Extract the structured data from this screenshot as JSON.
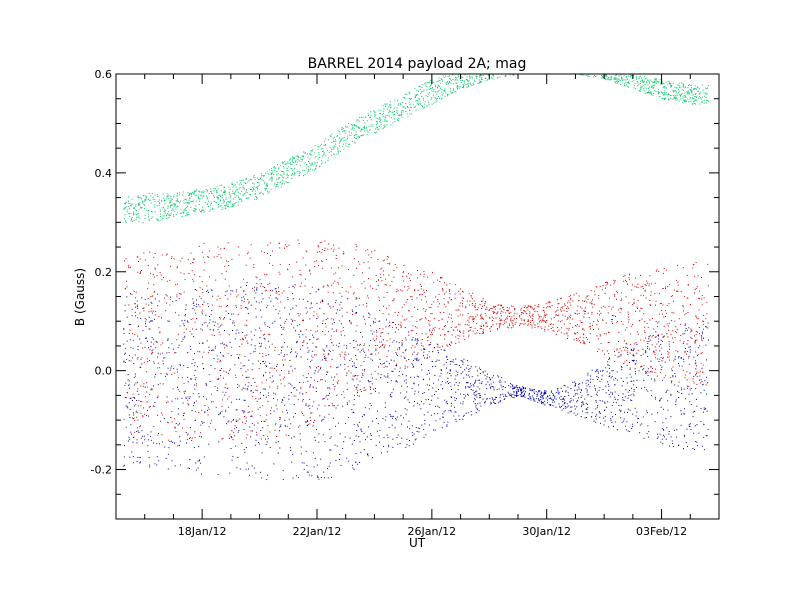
{
  "chart_data": {
    "type": "scatter",
    "title": "BARREL 2014 payload 2A; mag",
    "xlabel": "UT",
    "ylabel": "B (Gauss)",
    "xlim": [
      "2012-01-15T00:00",
      "2012-02-05T00:00"
    ],
    "ylim": [
      -0.3,
      0.6
    ],
    "x_ticks": [
      "18Jan/12",
      "22Jan/12",
      "26Jan/12",
      "30Jan/12",
      "03Feb/12"
    ],
    "x_tick_dates": [
      "2012-01-18",
      "2012-01-22",
      "2012-01-26",
      "2012-01-30",
      "2012-02-03"
    ],
    "y_ticks": [
      "-0.2",
      "0.0",
      "0.2",
      "0.4",
      "0.6"
    ],
    "y_tick_values": [
      -0.2,
      0.0,
      0.2,
      0.4,
      0.6
    ],
    "grid": false,
    "series": [
      {
        "color": "#00cc66",
        "x": [
          "2012-01-15",
          "2012-01-16",
          "2012-01-17",
          "2012-01-18",
          "2012-01-19",
          "2012-01-20",
          "2012-01-21",
          "2012-01-22",
          "2012-01-23",
          "2012-01-24",
          "2012-01-25",
          "2012-01-26",
          "2012-01-27",
          "2012-01-28",
          "2012-01-29",
          "2012-01-30",
          "2012-01-31",
          "2012-02-01",
          "2012-02-02",
          "2012-02-03",
          "2012-02-04"
        ],
        "upper": [
          0.36,
          0.36,
          0.36,
          0.37,
          0.38,
          0.4,
          0.43,
          0.46,
          0.5,
          0.53,
          0.56,
          0.59,
          0.61,
          0.62,
          0.63,
          0.64,
          0.63,
          0.61,
          0.6,
          0.59,
          0.58
        ],
        "lower": [
          0.3,
          0.3,
          0.31,
          0.32,
          0.33,
          0.35,
          0.38,
          0.41,
          0.45,
          0.48,
          0.51,
          0.54,
          0.57,
          0.59,
          0.6,
          0.6,
          0.6,
          0.59,
          0.57,
          0.55,
          0.54
        ]
      },
      {
        "color": "#cc0000",
        "x": [
          "2012-01-15",
          "2012-01-16",
          "2012-01-17",
          "2012-01-18",
          "2012-01-19",
          "2012-01-20",
          "2012-01-21",
          "2012-01-22",
          "2012-01-23",
          "2012-01-24",
          "2012-01-25",
          "2012-01-26",
          "2012-01-27",
          "2012-01-28",
          "2012-01-29",
          "2012-01-30",
          "2012-01-31",
          "2012-02-01",
          "2012-02-02",
          "2012-02-03",
          "2012-02-04"
        ],
        "upper": [
          0.23,
          0.24,
          0.25,
          0.26,
          0.26,
          0.26,
          0.265,
          0.265,
          0.26,
          0.25,
          0.22,
          0.2,
          0.17,
          0.14,
          0.13,
          0.14,
          0.16,
          0.18,
          0.2,
          0.21,
          0.22
        ],
        "lower": [
          -0.14,
          -0.14,
          -0.14,
          -0.14,
          -0.14,
          -0.14,
          -0.13,
          -0.11,
          -0.07,
          -0.03,
          0.0,
          0.03,
          0.06,
          0.08,
          0.09,
          0.08,
          0.06,
          0.03,
          0.0,
          -0.02,
          -0.04
        ]
      },
      {
        "color": "#0000aa",
        "x": [
          "2012-01-15",
          "2012-01-16",
          "2012-01-17",
          "2012-01-18",
          "2012-01-19",
          "2012-01-20",
          "2012-01-21",
          "2012-01-22",
          "2012-01-23",
          "2012-01-24",
          "2012-01-25",
          "2012-01-26",
          "2012-01-27",
          "2012-01-28",
          "2012-01-29",
          "2012-01-30",
          "2012-01-31",
          "2012-02-01",
          "2012-02-02",
          "2012-02-03",
          "2012-02-04"
        ],
        "upper": [
          0.16,
          0.16,
          0.16,
          0.17,
          0.18,
          0.18,
          0.18,
          0.17,
          0.15,
          0.12,
          0.09,
          0.06,
          0.03,
          0.0,
          -0.03,
          -0.04,
          -0.02,
          0.02,
          0.06,
          0.09,
          0.1
        ],
        "lower": [
          -0.2,
          -0.2,
          -0.2,
          -0.21,
          -0.21,
          -0.22,
          -0.22,
          -0.22,
          -0.21,
          -0.19,
          -0.16,
          -0.13,
          -0.1,
          -0.07,
          -0.05,
          -0.07,
          -0.09,
          -0.11,
          -0.13,
          -0.15,
          -0.16
        ]
      }
    ]
  }
}
